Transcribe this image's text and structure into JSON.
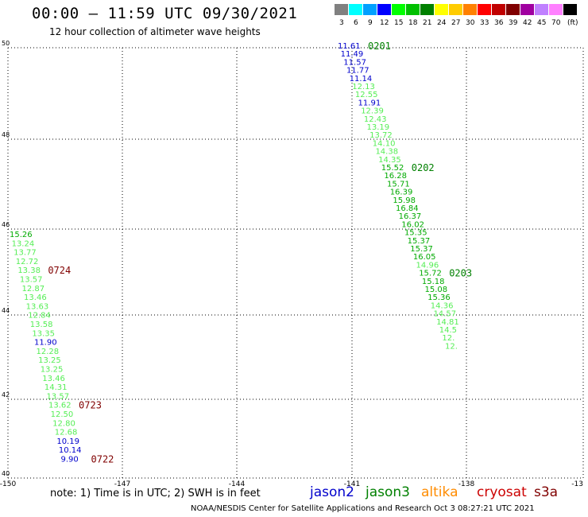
{
  "header": {
    "title": "00:00 – 11:59 UTC 09/30/2021",
    "subtitle": "12 hour collection of altimeter wave heights"
  },
  "legend": {
    "unit": "(ft)",
    "items": [
      {
        "label": "3",
        "color": "#808080"
      },
      {
        "label": "6",
        "color": "#00ffff"
      },
      {
        "label": "9",
        "color": "#00a0ff"
      },
      {
        "label": "12",
        "color": "#0000ff"
      },
      {
        "label": "15",
        "color": "#00ff00"
      },
      {
        "label": "18",
        "color": "#00c000"
      },
      {
        "label": "21",
        "color": "#008000"
      },
      {
        "label": "24",
        "color": "#ffff00"
      },
      {
        "label": "27",
        "color": "#ffcc00"
      },
      {
        "label": "30",
        "color": "#ff8000"
      },
      {
        "label": "33",
        "color": "#ff0000"
      },
      {
        "label": "36",
        "color": "#c00000"
      },
      {
        "label": "39",
        "color": "#800000"
      },
      {
        "label": "42",
        "color": "#a000a0"
      },
      {
        "label": "45",
        "color": "#c080ff"
      },
      {
        "label": "70",
        "color": "#ff80ff"
      },
      {
        "label": "",
        "color": "#000000"
      }
    ]
  },
  "axes": {
    "lon_ticks": [
      "-150",
      "-147",
      "-144",
      "-141",
      "-138",
      "-13"
    ],
    "lat_ticks": [
      "50",
      "48",
      "46",
      "44",
      "42",
      "40"
    ]
  },
  "tracks": [
    {
      "points": [
        {
          "t": "11.61",
          "c": "#0000cc"
        },
        {
          "t": "11.49",
          "c": "#0000cc"
        },
        {
          "t": "11.57",
          "c": "#0000cc"
        },
        {
          "t": "11.77",
          "c": "#0000cc"
        },
        {
          "t": "11.14",
          "c": "#0000cc"
        },
        {
          "t": "12.13",
          "c": "#55ee55"
        },
        {
          "t": "12.55",
          "c": "#55ee55"
        },
        {
          "t": "11.91",
          "c": "#0000cc"
        },
        {
          "t": "12.39",
          "c": "#55ee55"
        },
        {
          "t": "12.43",
          "c": "#55ee55"
        },
        {
          "t": "13.19",
          "c": "#55ee55"
        },
        {
          "t": "13.72",
          "c": "#55ee55"
        },
        {
          "t": "14.10",
          "c": "#55ee55"
        },
        {
          "t": "14.38",
          "c": "#55ee55"
        },
        {
          "t": "14.35",
          "c": "#55ee55"
        },
        {
          "t": "15.52",
          "c": "#00aa00"
        },
        {
          "t": "16.28",
          "c": "#00aa00"
        },
        {
          "t": "15.71",
          "c": "#00aa00"
        },
        {
          "t": "16.39",
          "c": "#00aa00"
        },
        {
          "t": "15.98",
          "c": "#00aa00"
        },
        {
          "t": "16.84",
          "c": "#00aa00"
        },
        {
          "t": "16.37",
          "c": "#00aa00"
        },
        {
          "t": "16.02",
          "c": "#00aa00"
        },
        {
          "t": "15.35",
          "c": "#00aa00"
        },
        {
          "t": "15.37",
          "c": "#00aa00"
        },
        {
          "t": "15.37",
          "c": "#00aa00"
        },
        {
          "t": "16.05",
          "c": "#00aa00"
        },
        {
          "t": "14.96",
          "c": "#55ee55"
        },
        {
          "t": "15.72",
          "c": "#00aa00"
        },
        {
          "t": "15.18",
          "c": "#00aa00"
        },
        {
          "t": "15.08",
          "c": "#00aa00"
        },
        {
          "t": "15.36",
          "c": "#00aa00"
        },
        {
          "t": "14.36",
          "c": "#55ee55"
        },
        {
          "t": "14.57",
          "c": "#55ee55"
        },
        {
          "t": "14.81",
          "c": "#55ee55"
        },
        {
          "t": "14.5",
          "c": "#55ee55"
        },
        {
          "t": "12.",
          "c": "#55ee55"
        },
        {
          "t": "12.",
          "c": "#55ee55"
        }
      ],
      "time_labels": [
        {
          "t": "0201",
          "c": "#008000",
          "i": 0
        },
        {
          "t": "0202",
          "c": "#008000",
          "i": 15
        },
        {
          "t": "0203",
          "c": "#008000",
          "i": 28
        }
      ]
    },
    {
      "points": [
        {
          "t": "15.26",
          "c": "#00aa00"
        },
        {
          "t": "13.24",
          "c": "#55ee55"
        },
        {
          "t": "13.77",
          "c": "#55ee55"
        },
        {
          "t": "12.72",
          "c": "#55ee55"
        },
        {
          "t": "13.38",
          "c": "#55ee55"
        },
        {
          "t": "13.57",
          "c": "#55ee55"
        },
        {
          "t": "12.87",
          "c": "#55ee55"
        },
        {
          "t": "13.46",
          "c": "#55ee55"
        },
        {
          "t": "13.63",
          "c": "#55ee55"
        },
        {
          "t": "12.84",
          "c": "#55ee55"
        },
        {
          "t": "13.58",
          "c": "#55ee55"
        },
        {
          "t": "13.35",
          "c": "#55ee55"
        },
        {
          "t": "11.90",
          "c": "#0000cc"
        },
        {
          "t": "12.28",
          "c": "#55ee55"
        },
        {
          "t": "13.25",
          "c": "#55ee55"
        },
        {
          "t": "13.25",
          "c": "#55ee55"
        },
        {
          "t": "13.46",
          "c": "#55ee55"
        },
        {
          "t": "14.31",
          "c": "#55ee55"
        },
        {
          "t": "13.57",
          "c": "#55ee55"
        },
        {
          "t": "13.62",
          "c": "#55ee55"
        },
        {
          "t": "12.50",
          "c": "#55ee55"
        },
        {
          "t": "12.80",
          "c": "#55ee55"
        },
        {
          "t": "12.68",
          "c": "#55ee55"
        },
        {
          "t": "10.19",
          "c": "#0000cc"
        },
        {
          "t": "10.14",
          "c": "#0000cc"
        },
        {
          "t": "9.90",
          "c": "#0000cc"
        }
      ],
      "time_labels": [
        {
          "t": "0724",
          "c": "#800000",
          "i": 4
        },
        {
          "t": "0723",
          "c": "#800000",
          "i": 19
        },
        {
          "t": "0722",
          "c": "#800000",
          "i": 25
        }
      ]
    }
  ],
  "satellites": [
    {
      "name": "jason2",
      "color": "#0000cc"
    },
    {
      "name": "jason3",
      "color": "#008000"
    },
    {
      "name": "altika",
      "color": "#ff8c00"
    },
    {
      "name": "cryosat",
      "color": "#cc0000"
    },
    {
      "name": "s3a",
      "color": "#800000"
    }
  ],
  "note": "note:  1) Time is in UTC;  2) SWH is in feet",
  "footer": "NOAA/NESDIS Center for Satellite Applications and Research    Oct  3 08:27:21 UTC 2021"
}
